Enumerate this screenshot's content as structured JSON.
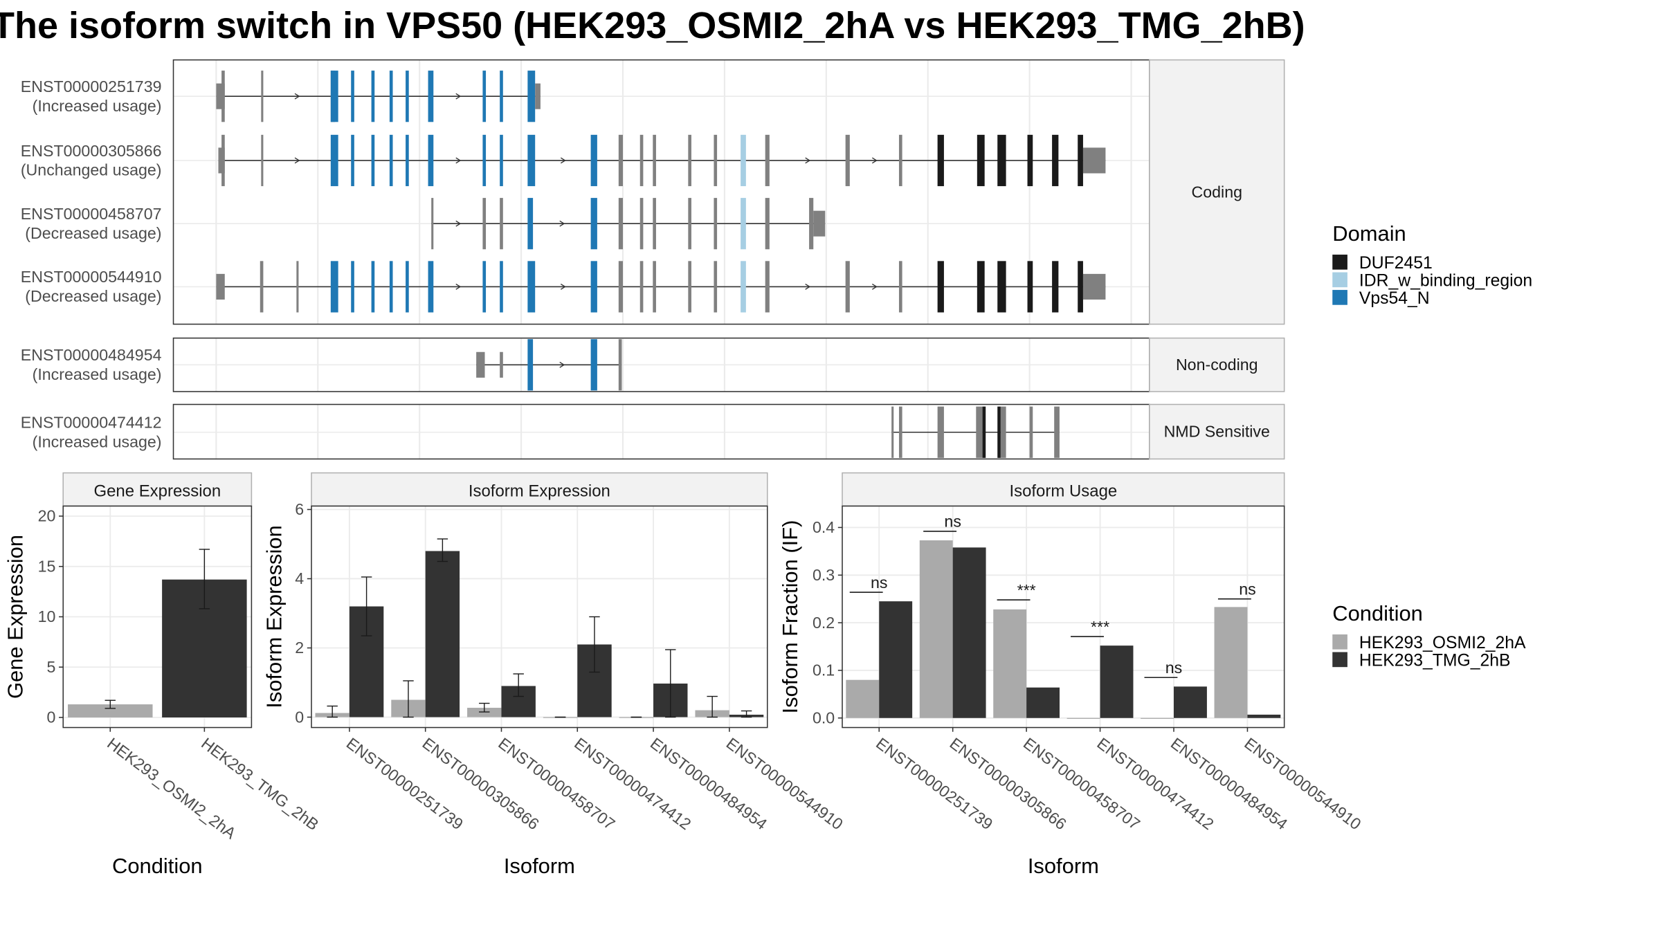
{
  "title": "The isoform switch in VPS50 (HEK293_OSMI2_2hA vs HEK293_TMG_2hB)",
  "colors": {
    "cond_a": "#aaaaaa",
    "cond_b": "#333333",
    "exon_none": "#808080",
    "DUF2451": "#1a1a1a",
    "IDR_w_binding_region": "#a6cee3",
    "Vps54_N": "#1f78b4",
    "strip": "#f2f2f2",
    "panel_border": "#333333",
    "grid": "#ebebeb"
  },
  "chart_data": [
    {
      "type": "transcript_structure",
      "title": "",
      "groups": [
        {
          "name": "Coding",
          "transcripts": [
            {
              "id": "ENST00000251739",
              "usage": "(Increased usage)",
              "exons": [
                [
                  202,
                  210,
                  "none",
                  "utr"
                ],
                [
                  207,
                  210,
                  "none"
                ],
                [
                  244,
                  246,
                  "none"
                ],
                [
                  309,
                  313,
                  "none"
                ],
                [
                  309,
                  316,
                  "Vps54_N"
                ],
                [
                  328,
                  331,
                  "Vps54_N"
                ],
                [
                  347,
                  350,
                  "Vps54_N"
                ],
                [
                  364,
                  367,
                  "Vps54_N"
                ],
                [
                  379,
                  382,
                  "Vps54_N"
                ],
                [
                  400,
                  405,
                  "Vps54_N"
                ],
                [
                  451,
                  454,
                  "Vps54_N"
                ],
                [
                  467,
                  470,
                  "Vps54_N"
                ],
                [
                  493,
                  500,
                  "Vps54_N"
                ],
                [
                  500,
                  505,
                  "none",
                  "utr"
                ]
              ]
            },
            {
              "id": "ENST00000305866",
              "usage": "(Unchanged usage)",
              "exons": [
                [
                  204,
                  210,
                  "none",
                  "utr"
                ],
                [
                  207,
                  210,
                  "none"
                ],
                [
                  244,
                  246,
                  "none"
                ],
                [
                  309,
                  316,
                  "Vps54_N"
                ],
                [
                  328,
                  331,
                  "Vps54_N"
                ],
                [
                  347,
                  350,
                  "Vps54_N"
                ],
                [
                  364,
                  367,
                  "Vps54_N"
                ],
                [
                  379,
                  382,
                  "Vps54_N"
                ],
                [
                  400,
                  405,
                  "Vps54_N"
                ],
                [
                  451,
                  454,
                  "Vps54_N"
                ],
                [
                  467,
                  470,
                  "Vps54_N"
                ],
                [
                  493,
                  500,
                  "Vps54_N"
                ],
                [
                  552,
                  558,
                  "Vps54_N"
                ],
                [
                  578,
                  582,
                  "none"
                ],
                [
                  598,
                  601,
                  "none"
                ],
                [
                  610,
                  613,
                  "none"
                ],
                [
                  643,
                  646,
                  "none"
                ],
                [
                  667,
                  670,
                  "none"
                ],
                [
                  692,
                  697,
                  "IDR_w_binding_region"
                ],
                [
                  715,
                  719,
                  "none"
                ],
                [
                  790,
                  794,
                  "none"
                ],
                [
                  840,
                  843,
                  "none"
                ],
                [
                  876,
                  882,
                  "DUF2451"
                ],
                [
                  913,
                  920,
                  "DUF2451"
                ],
                [
                  932,
                  940,
                  "DUF2451"
                ],
                [
                  960,
                  965,
                  "DUF2451"
                ],
                [
                  983,
                  989,
                  "DUF2451"
                ],
                [
                  1007,
                  1012,
                  "DUF2451"
                ],
                [
                  1012,
                  1033,
                  "none",
                  "utr"
                ]
              ]
            },
            {
              "id": "ENST00000458707",
              "usage": "(Decreased usage)",
              "exons": [
                [
                  403,
                  405,
                  "none"
                ],
                [
                  451,
                  454,
                  "none"
                ],
                [
                  467,
                  470,
                  "none"
                ],
                [
                  493,
                  498,
                  "Vps54_N"
                ],
                [
                  552,
                  558,
                  "Vps54_N"
                ],
                [
                  578,
                  582,
                  "none"
                ],
                [
                  598,
                  601,
                  "none"
                ],
                [
                  610,
                  613,
                  "none"
                ],
                [
                  643,
                  646,
                  "none"
                ],
                [
                  667,
                  670,
                  "none"
                ],
                [
                  692,
                  697,
                  "IDR_w_binding_region"
                ],
                [
                  715,
                  719,
                  "none"
                ],
                [
                  756,
                  760,
                  "none"
                ],
                [
                  760,
                  771,
                  "none",
                  "utr"
                ]
              ]
            },
            {
              "id": "ENST00000544910",
              "usage": "(Decreased usage)",
              "exons": [
                [
                  202,
                  210,
                  "none",
                  "utr"
                ],
                [
                  243,
                  246,
                  "none"
                ],
                [
                  277,
                  279,
                  "none"
                ],
                [
                  309,
                  316,
                  "Vps54_N"
                ],
                [
                  328,
                  331,
                  "Vps54_N"
                ],
                [
                  347,
                  350,
                  "Vps54_N"
                ],
                [
                  364,
                  367,
                  "Vps54_N"
                ],
                [
                  379,
                  382,
                  "Vps54_N"
                ],
                [
                  400,
                  405,
                  "Vps54_N"
                ],
                [
                  451,
                  454,
                  "Vps54_N"
                ],
                [
                  467,
                  470,
                  "Vps54_N"
                ],
                [
                  493,
                  500,
                  "Vps54_N"
                ],
                [
                  552,
                  558,
                  "Vps54_N"
                ],
                [
                  578,
                  582,
                  "none"
                ],
                [
                  598,
                  601,
                  "none"
                ],
                [
                  610,
                  613,
                  "none"
                ],
                [
                  643,
                  646,
                  "none"
                ],
                [
                  667,
                  670,
                  "none"
                ],
                [
                  692,
                  697,
                  "IDR_w_binding_region"
                ],
                [
                  715,
                  719,
                  "none"
                ],
                [
                  790,
                  794,
                  "none"
                ],
                [
                  840,
                  843,
                  "none"
                ],
                [
                  876,
                  882,
                  "DUF2451"
                ],
                [
                  913,
                  920,
                  "DUF2451"
                ],
                [
                  932,
                  940,
                  "DUF2451"
                ],
                [
                  960,
                  965,
                  "DUF2451"
                ],
                [
                  983,
                  989,
                  "DUF2451"
                ],
                [
                  1007,
                  1012,
                  "DUF2451"
                ],
                [
                  1012,
                  1033,
                  "none",
                  "utr"
                ]
              ]
            }
          ]
        },
        {
          "name": "Non-coding",
          "transcripts": [
            {
              "id": "ENST00000484954",
              "usage": "(Increased usage)",
              "exons": [
                [
                  445,
                  453,
                  "none",
                  "utr"
                ],
                [
                  467,
                  470,
                  "none",
                  "utr"
                ],
                [
                  493,
                  498,
                  "Vps54_N"
                ],
                [
                  552,
                  558,
                  "Vps54_N"
                ],
                [
                  578,
                  581,
                  "none"
                ]
              ]
            }
          ]
        },
        {
          "name": "NMD Sensitive",
          "transcripts": [
            {
              "id": "ENST00000474412",
              "usage": "(Increased usage)",
              "exons": [
                [
                  833,
                  835,
                  "none"
                ],
                [
                  840,
                  843,
                  "none"
                ],
                [
                  876,
                  882,
                  "none"
                ],
                [
                  912,
                  918,
                  "none"
                ],
                [
                  918,
                  921,
                  "DUF2451"
                ],
                [
                  932,
                  935,
                  "DUF2451"
                ],
                [
                  935,
                  940,
                  "none"
                ],
                [
                  962,
                  965,
                  "none"
                ],
                [
                  985,
                  990,
                  "none"
                ]
              ]
            }
          ]
        }
      ],
      "legend": {
        "title": "Domain",
        "entries": [
          "DUF2451",
          "IDR_w_binding_region",
          "Vps54_N"
        ]
      }
    },
    {
      "type": "bar",
      "title": "Gene Expression",
      "xlabel": "Condition",
      "ylabel": "Gene Expression",
      "ylim": [
        -1,
        21
      ],
      "yticks": [
        0,
        5,
        10,
        15,
        20
      ],
      "categories": [
        "HEK293_OSMI2_2hA",
        "HEK293_TMG_2hB"
      ],
      "values": [
        1.3,
        13.7
      ],
      "error": [
        [
          0.9,
          1.7
        ],
        [
          10.8,
          16.7
        ]
      ]
    },
    {
      "type": "bar",
      "title": "Isoform Expression",
      "xlabel": "Isoform",
      "ylabel": "Isoform Expression",
      "ylim": [
        -0.3,
        6.1
      ],
      "yticks": [
        0,
        2,
        4,
        6
      ],
      "categories": [
        "ENST00000251739",
        "ENST00000305866",
        "ENST00000458707",
        "ENST00000474412",
        "ENST00000484954",
        "ENST00000544910"
      ],
      "series": [
        {
          "name": "HEK293_OSMI2_2hA",
          "values": [
            0.12,
            0.5,
            0.27,
            0.0,
            0.0,
            0.2
          ],
          "error": [
            [
              0.0,
              0.32
            ],
            [
              0.0,
              1.05
            ],
            [
              0.15,
              0.4
            ],
            [
              0.0,
              0.0
            ],
            [
              0.0,
              0.0
            ],
            [
              0.0,
              0.6
            ]
          ]
        },
        {
          "name": "HEK293_TMG_2hB",
          "values": [
            3.2,
            4.8,
            0.9,
            2.1,
            0.97,
            0.07
          ],
          "error": [
            [
              2.35,
              4.05
            ],
            [
              4.5,
              5.15
            ],
            [
              0.6,
              1.25
            ],
            [
              1.3,
              2.9
            ],
            [
              0.0,
              1.95
            ],
            [
              0.0,
              0.18
            ]
          ]
        }
      ]
    },
    {
      "type": "bar",
      "title": "Isoform Usage",
      "xlabel": "Isoform",
      "ylabel": "Isoform Fraction (IF)",
      "ylim": [
        -0.02,
        0.445
      ],
      "yticks": [
        "0.0",
        "0.1",
        "0.2",
        "0.3",
        "0.4"
      ],
      "categories": [
        "ENST00000251739",
        "ENST00000305866",
        "ENST00000458707",
        "ENST00000474412",
        "ENST00000484954",
        "ENST00000544910"
      ],
      "series": [
        {
          "name": "HEK293_OSMI2_2hA",
          "values": [
            0.08,
            0.373,
            0.228,
            0.0,
            0.0,
            0.233
          ]
        },
        {
          "name": "HEK293_TMG_2hB",
          "values": [
            0.245,
            0.358,
            0.064,
            0.152,
            0.066,
            0.007
          ]
        }
      ],
      "significance": [
        "ns",
        "ns",
        "***",
        "***",
        "ns",
        "ns"
      ],
      "sig_y": [
        0.264,
        0.392,
        0.248,
        0.171,
        0.085,
        0.25
      ]
    }
  ],
  "legend_condition": {
    "title": "Condition",
    "entries": [
      "HEK293_OSMI2_2hA",
      "HEK293_TMG_2hB"
    ]
  }
}
